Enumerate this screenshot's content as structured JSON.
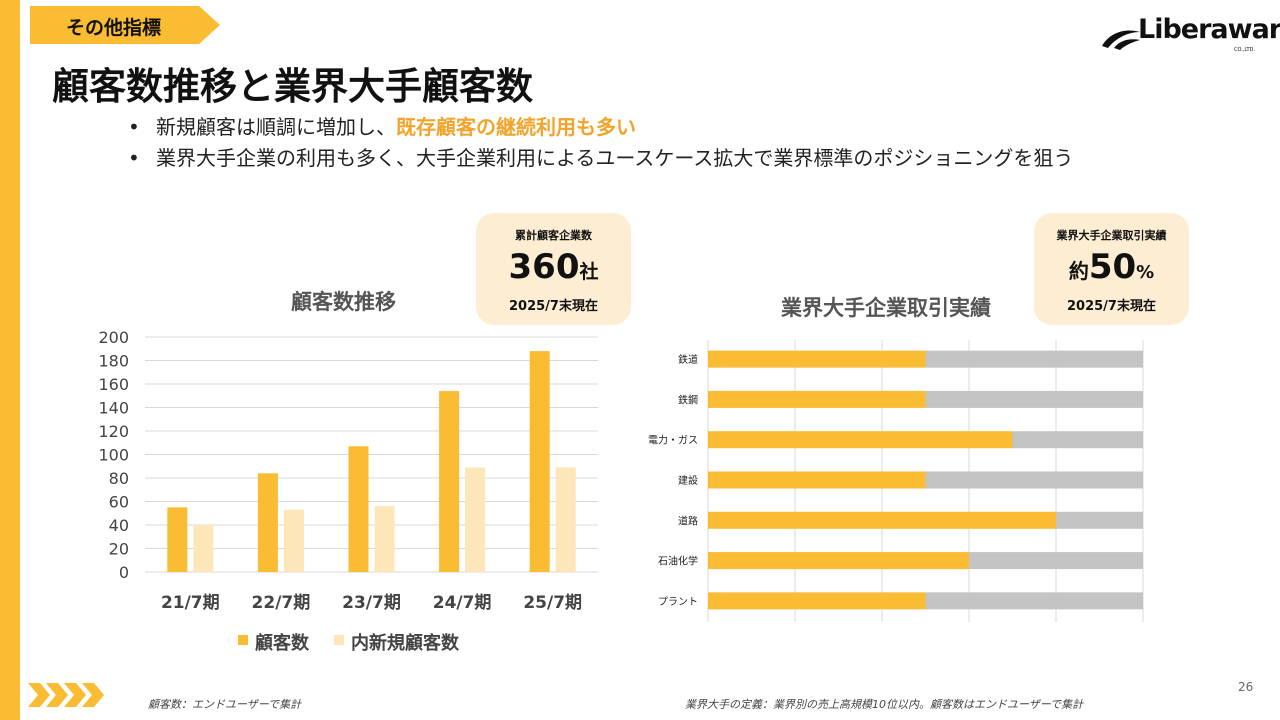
{
  "section_tag": "その他指標",
  "logo": {
    "main": "Liberaware",
    "sub": "CO.,LTD."
  },
  "page_title": "顧客数推移と業界大手顧客数",
  "bullets": [
    {
      "text": "新規顧客は順調に増加し、",
      "highlight": "既存顧客の継続利用も多い"
    },
    {
      "text": "業界大手企業の利用も多く、大手企業利用によるユースケース拡大で業界標準のポジショニングを狙う",
      "highlight": ""
    }
  ],
  "callout_customers": {
    "label": "累計顧客企業数",
    "value": "360",
    "unit": "社",
    "sub": "2025/7末現在"
  },
  "callout_industry": {
    "label": "業界大手企業取引実績",
    "prefix": "約",
    "value": "50",
    "unit": "%",
    "sub": "2025/7末現在"
  },
  "chart_data": [
    {
      "type": "bar",
      "title": "顧客数推移",
      "categories": [
        "21/7期",
        "22/7期",
        "23/7期",
        "24/7期",
        "25/7期"
      ],
      "series": [
        {
          "name": "顧客数",
          "values": [
            55,
            84,
            107,
            154,
            188
          ],
          "color": "#f9bc33"
        },
        {
          "name": "内新規顧客数",
          "values": [
            40,
            53,
            56,
            89,
            89
          ],
          "color": "#fde7b8"
        }
      ],
      "ylim": [
        0,
        200
      ],
      "yticks": [
        0,
        20,
        40,
        60,
        80,
        100,
        120,
        140,
        160,
        180,
        200
      ],
      "grid": true,
      "legend": "bottom"
    },
    {
      "type": "bar",
      "orientation": "horizontal",
      "stacked": true,
      "title": "業界大手企業取引実績",
      "categories": [
        "鉄道",
        "鉄鋼",
        "電力・ガス",
        "建設",
        "道路",
        "石油化学",
        "プラント"
      ],
      "series": [
        {
          "values": [
            50,
            50,
            70,
            50,
            80,
            60,
            50
          ],
          "color": "#f9bc33"
        },
        {
          "values": [
            50,
            50,
            30,
            50,
            20,
            40,
            50
          ],
          "color": "#c4c4c4"
        }
      ],
      "xlim": [
        0,
        100
      ],
      "grid": true
    }
  ],
  "footnotes": {
    "left": "顧客数：エンドユーザーで集計",
    "right": "業界大手の定義：業界別の売上高規模10位以内。顧客数はエンドユーザーで集計"
  },
  "page_number": "26",
  "colors": {
    "accent": "#f9bc33",
    "highlight_text": "#f2a42a",
    "callout_bg": "#fdeed3",
    "light_series": "#fde7b8",
    "remainder": "#c4c4c4"
  }
}
